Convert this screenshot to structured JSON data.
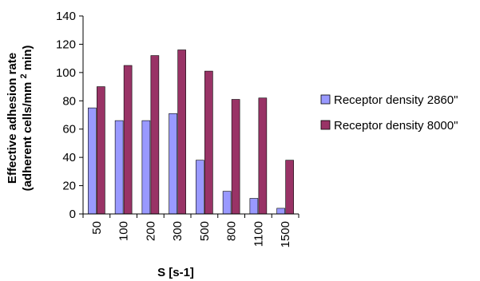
{
  "chart_data": {
    "type": "bar",
    "categories": [
      "50",
      "100",
      "200",
      "300",
      "500",
      "800",
      "1100",
      "1500"
    ],
    "series": [
      {
        "name": "Receptor density 2860\"",
        "values": [
          75,
          66,
          66,
          71,
          38,
          16,
          11,
          4
        ]
      },
      {
        "name": "Receptor density 8000\"",
        "values": [
          90,
          105,
          112,
          116,
          101,
          81,
          82,
          38
        ]
      }
    ],
    "title": "",
    "xlabel": "S [s-1]",
    "ylabel_line1": "Effective adhesion rate",
    "ylabel_line2_prefix": "(adherent cells/mm",
    "ylabel_line2_sup": "2",
    "ylabel_line2_suffix": " min)",
    "ylim": [
      0,
      140
    ],
    "yticks": [
      0,
      20,
      40,
      60,
      80,
      100,
      120,
      140
    ],
    "grid": false,
    "legend_position": "right",
    "colors": {
      "series1": "#9999ff",
      "series2": "#993366",
      "axis": "#000000",
      "bar_border": "#000000"
    }
  }
}
